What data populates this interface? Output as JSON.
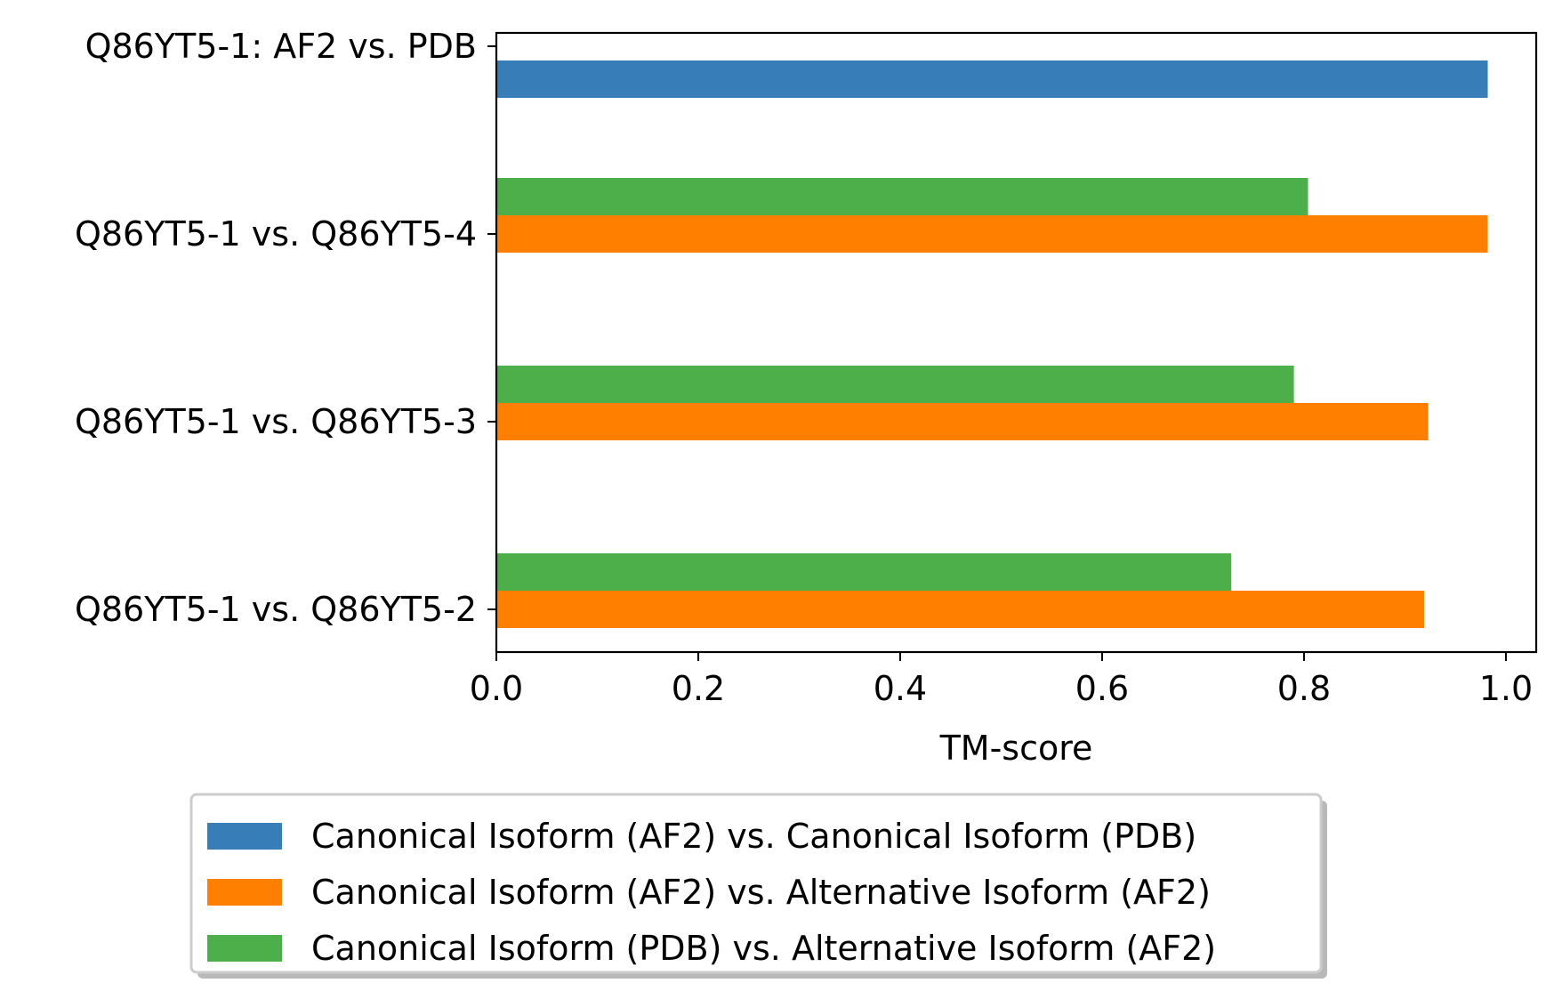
{
  "chart_data": {
    "type": "bar",
    "orientation": "horizontal",
    "title": "",
    "xlabel": "TM-score",
    "ylabel": "",
    "xlim": [
      0,
      1.03
    ],
    "xticks": [
      "0.0",
      "0.2",
      "0.4",
      "0.6",
      "0.8",
      "1.0"
    ],
    "xtick_values": [
      0.0,
      0.2,
      0.4,
      0.6,
      0.8,
      1.0
    ],
    "grid": false,
    "legend_position": "bottom-center",
    "categories": [
      "Q86YT5-1: AF2 vs. PDB",
      "Q86YT5-1 vs. Q86YT5-4",
      "Q86YT5-1 vs. Q86YT5-3",
      "Q86YT5-1 vs. Q86YT5-2"
    ],
    "series": [
      {
        "name": "Canonical Isoform (AF2) vs. Canonical Isoform (PDB)",
        "color": "#377eb8",
        "values": [
          0.982,
          null,
          null,
          null
        ]
      },
      {
        "name": "Canonical Isoform (AF2) vs. Alternative Isoform (AF2)",
        "color": "#ff7f00",
        "values": [
          null,
          0.982,
          0.923,
          0.919
        ]
      },
      {
        "name": "Canonical Isoform (PDB) vs. Alternative Isoform (AF2)",
        "color": "#4daf4a",
        "values": [
          null,
          0.804,
          0.79,
          0.728
        ]
      }
    ]
  }
}
